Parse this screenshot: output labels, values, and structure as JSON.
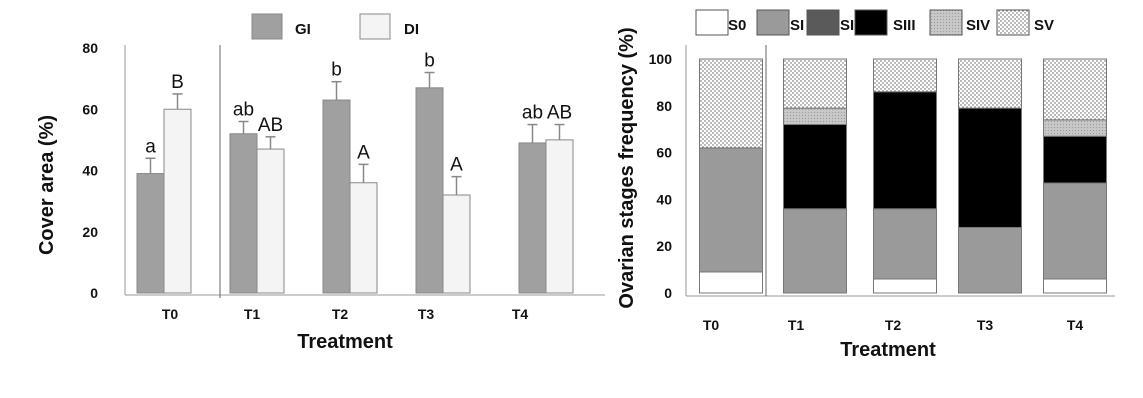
{
  "chart_data": [
    {
      "type": "bar",
      "xlabel": "Treatment",
      "ylabel": "Cover  area (%)",
      "ylim": [
        0,
        80
      ],
      "yticks": [
        "0",
        "20",
        "40",
        "60",
        "80"
      ],
      "categories": [
        "T0",
        "T1",
        "T2",
        "T3",
        "T4"
      ],
      "legend": "top",
      "grid": false,
      "error_bars": true,
      "series": [
        {
          "name": "GI",
          "color": "#a0a0a0",
          "values": [
            39,
            52,
            63,
            67,
            49
          ],
          "errors": [
            5,
            4,
            6,
            5,
            6
          ],
          "labels": [
            "a",
            "ab",
            "b",
            "b",
            "ab"
          ]
        },
        {
          "name": "DI",
          "color": "#f4f4f4",
          "values": [
            60,
            47,
            36,
            32,
            50
          ],
          "errors": [
            5,
            4,
            6,
            6,
            5
          ],
          "labels": [
            "B",
            "AB",
            "A",
            "A",
            "AB"
          ]
        }
      ]
    },
    {
      "type": "bar",
      "stacked": true,
      "xlabel": "Treatment",
      "ylabel": "Ovarian stages frequency  (%)",
      "ylim": [
        0,
        100
      ],
      "yticks": [
        "0",
        "20",
        "40",
        "60",
        "80",
        "100"
      ],
      "categories": [
        "T0",
        "T1",
        "T2",
        "T3",
        "T4"
      ],
      "legend": "top",
      "grid": false,
      "series": [
        {
          "name": "S0",
          "pattern": "white",
          "values": [
            9,
            0,
            6,
            0,
            6
          ]
        },
        {
          "name": "SI",
          "pattern": "gray",
          "values": [
            53,
            36,
            30,
            28,
            41
          ]
        },
        {
          "name": "SII",
          "pattern": "darkgray",
          "values": [
            0,
            0,
            0,
            0,
            0
          ]
        },
        {
          "name": "SIII",
          "pattern": "black",
          "values": [
            0,
            36,
            50,
            51,
            20
          ]
        },
        {
          "name": "SIV",
          "pattern": "lightgray",
          "values": [
            0,
            7,
            0,
            0,
            7
          ]
        },
        {
          "name": "SV",
          "pattern": "dotted",
          "values": [
            38,
            21,
            14,
            21,
            26
          ]
        }
      ]
    }
  ]
}
